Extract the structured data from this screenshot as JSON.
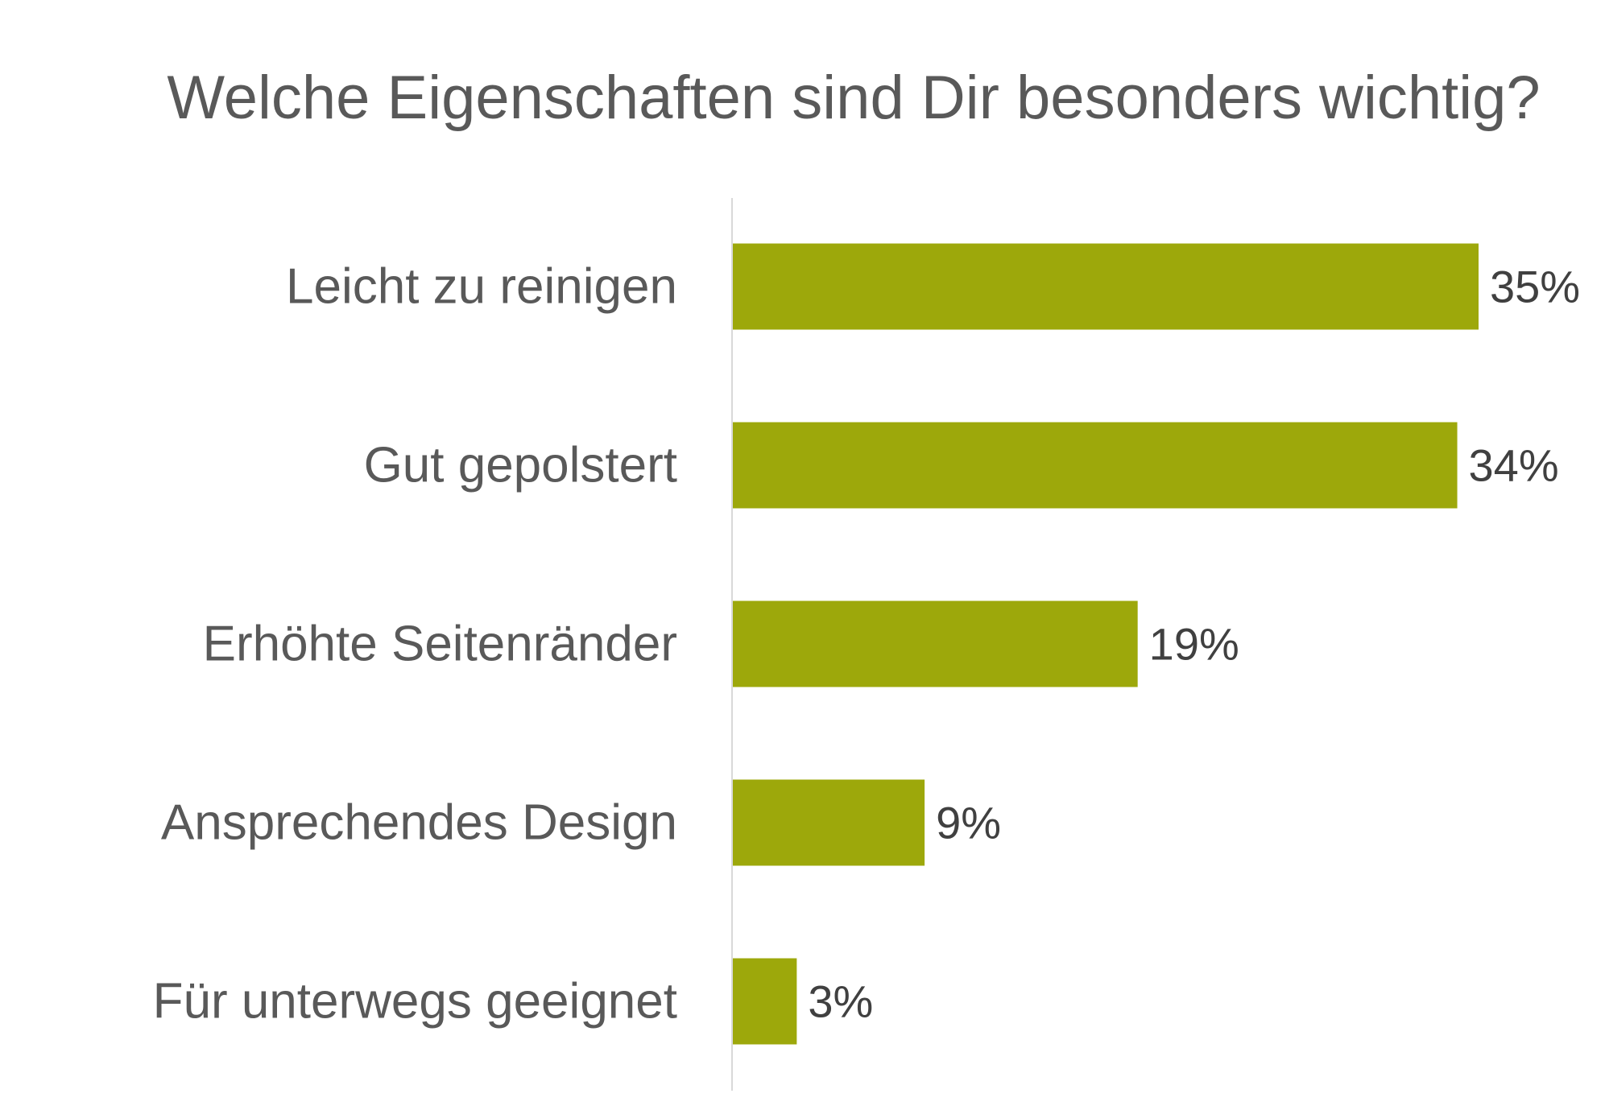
{
  "chart_data": {
    "type": "bar",
    "orientation": "horizontal",
    "title": "Welche Eigenschaften sind Dir besonders wichtig?",
    "categories": [
      "Leicht zu reinigen",
      "Gut gepolstert",
      "Erhöhte Seitenränder",
      "Ansprechendes Design",
      "Für unterwegs geeignet"
    ],
    "values": [
      35,
      34,
      19,
      9,
      3
    ],
    "value_labels": [
      "35%",
      "34%",
      "19%",
      "9%",
      "3%"
    ],
    "xlim": [
      0,
      35
    ],
    "grid": false,
    "legend": "none",
    "bar_color": "#9DA80B",
    "axis_color": "#D9D9D9"
  }
}
